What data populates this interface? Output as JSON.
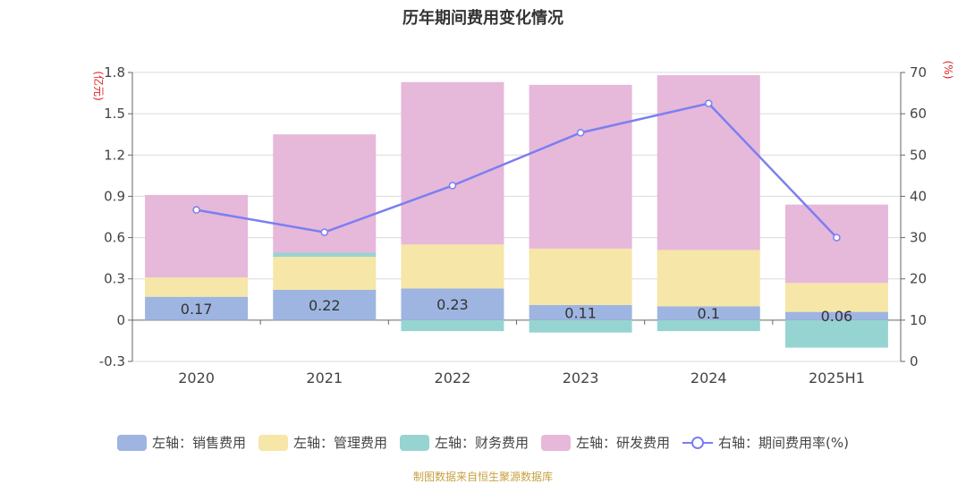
{
  "chart_data": {
    "type": "bar",
    "title": "历年期间费用变化情况",
    "categories": [
      "2020",
      "2021",
      "2022",
      "2023",
      "2024",
      "2025H1"
    ],
    "left_axis": {
      "unit": "(亿元)",
      "min": -0.3,
      "max": 1.8,
      "ticks": [
        "-0.3",
        "0",
        "0.3",
        "0.6",
        "0.9",
        "1.2",
        "1.5",
        "1.8"
      ]
    },
    "right_axis": {
      "unit": "(%)",
      "min": 0,
      "max": 70,
      "ticks": [
        "0",
        "10",
        "20",
        "30",
        "40",
        "50",
        "60",
        "70"
      ]
    },
    "stacked": true,
    "grid": true,
    "legend_position": "bottom",
    "series": [
      {
        "name": "左轴：销售费用",
        "color": "#9db5e0",
        "values": [
          0.17,
          0.22,
          0.23,
          0.11,
          0.1,
          0.06
        ],
        "labels": [
          "0.17",
          "0.22",
          "0.23",
          "0.11",
          "0.1",
          "0.06"
        ]
      },
      {
        "name": "左轴：管理费用",
        "color": "#f6e6a8",
        "values": [
          0.14,
          0.24,
          0.32,
          0.41,
          0.41,
          0.21
        ]
      },
      {
        "name": "左轴：财务费用",
        "color": "#96d4d2",
        "values": [
          0.0,
          0.03,
          -0.08,
          -0.09,
          -0.08,
          -0.2
        ]
      },
      {
        "name": "左轴：研发费用",
        "color": "#e6b8da",
        "values": [
          0.6,
          0.86,
          1.18,
          1.19,
          1.27,
          0.57
        ]
      }
    ],
    "line_series": {
      "name": "右轴：期间费用率(%)",
      "color": "#7b7ff0",
      "values": [
        36.7,
        31.3,
        42.6,
        55.4,
        62.5,
        30.0
      ]
    }
  },
  "source_text": "制图数据来自恒生聚源数据库"
}
